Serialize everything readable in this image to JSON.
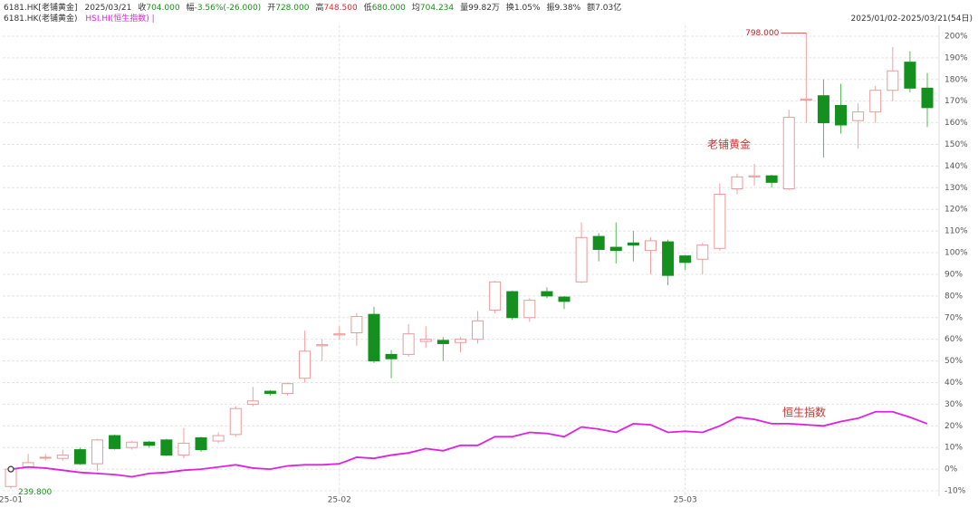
{
  "chart_data": {
    "type": "candlestick",
    "header": [
      {
        "label": "6181.HK[老铺黄金]",
        "value": "2025/03/21",
        "color": "#333333"
      },
      {
        "label": "收",
        "value": "704.000",
        "color": "#1a8f1a"
      },
      {
        "label": "幅",
        "value": "-3.56%(-26.000)",
        "color": "#1a8f1a"
      },
      {
        "label": "开",
        "value": "728.000",
        "color": "#1a8f1a"
      },
      {
        "label": "高",
        "value": "748.500",
        "color": "#d03030"
      },
      {
        "label": "低",
        "value": "680.000",
        "color": "#1a8f1a"
      },
      {
        "label": "均",
        "value": "704.234",
        "color": "#1a8f1a"
      },
      {
        "label": "量",
        "value": "99.82万",
        "color": "#333333"
      },
      {
        "label": "换",
        "value": "1.05%",
        "color": "#333333"
      },
      {
        "label": "振",
        "value": "9.38%",
        "color": "#333333"
      },
      {
        "label": "额",
        "value": "7.03亿",
        "color": "#333333"
      }
    ],
    "date_range": "2025/01/02-2025/03/21(54日)",
    "categories": [
      "25-01",
      null,
      null,
      null,
      null,
      null,
      null,
      null,
      null,
      null,
      null,
      null,
      null,
      null,
      null,
      null,
      null,
      null,
      null,
      "25-02",
      null,
      null,
      null,
      null,
      null,
      null,
      null,
      null,
      null,
      null,
      null,
      null,
      null,
      null,
      null,
      null,
      null,
      null,
      null,
      "25-03",
      null,
      null,
      null,
      null,
      null,
      null,
      null,
      null,
      null,
      null,
      null,
      null,
      null,
      null
    ],
    "ylim": [
      -12.5,
      205
    ],
    "yticks": [
      {
        "value": -10,
        "label": "-10%"
      },
      {
        "value": 0,
        "label": "0%"
      },
      {
        "value": 10,
        "label": "10%"
      },
      {
        "value": 20,
        "label": "20%"
      },
      {
        "value": 30,
        "label": "30%"
      },
      {
        "value": 40,
        "label": "40%"
      },
      {
        "value": 50,
        "label": "50%"
      },
      {
        "value": 60,
        "label": "60%"
      },
      {
        "value": 70,
        "label": "70%"
      },
      {
        "value": 80,
        "label": "80%"
      },
      {
        "value": 90,
        "label": "90%"
      },
      {
        "value": 100,
        "label": "100%"
      },
      {
        "value": 110,
        "label": "110%"
      },
      {
        "value": 120,
        "label": "120%"
      },
      {
        "value": 130,
        "label": "130%"
      },
      {
        "value": 140,
        "label": "140%"
      },
      {
        "value": 150,
        "label": "150%"
      },
      {
        "value": 160,
        "label": "160%"
      },
      {
        "value": 170,
        "label": "170%"
      },
      {
        "value": 180,
        "label": "180%"
      },
      {
        "value": 190,
        "label": "190%"
      },
      {
        "value": 200,
        "label": "200%"
      }
    ],
    "grid": true,
    "candles": {
      "name": "6181.HK(老铺黄金)",
      "annotation": "老铺黄金",
      "up_color": "#e05050",
      "down_color": "#14901e",
      "high_label": "798.000",
      "low_label": "239.800",
      "open": [
        -8,
        1,
        5.5,
        5,
        9,
        2.5,
        15.5,
        10,
        12.5,
        13.5,
        6.5,
        14.5,
        13,
        16,
        30,
        36,
        35,
        42,
        57,
        62,
        63,
        71.5,
        53,
        53,
        59,
        59.5,
        58.5,
        60,
        73.5,
        82,
        70,
        82,
        79.5,
        86.5,
        107.5,
        102.5,
        104.5,
        101,
        105,
        98.5,
        97,
        102,
        129.5,
        135,
        135.5,
        129.5,
        170.5,
        172.5,
        168,
        161,
        165,
        175,
        188,
        176
      ],
      "high": [
        1,
        7,
        7,
        9,
        10,
        14,
        16,
        13,
        13,
        14,
        19,
        15,
        17,
        29,
        38,
        36.5,
        40,
        64,
        60,
        66,
        72,
        75,
        55,
        67,
        66,
        61,
        61,
        73,
        87,
        82.5,
        79,
        84,
        80,
        114,
        109,
        114,
        110,
        107,
        106,
        99,
        104.5,
        132,
        136.5,
        141,
        136,
        166,
        201.5,
        180,
        178,
        169,
        177,
        195,
        193,
        183
      ],
      "low": [
        -9,
        0,
        4,
        4,
        2,
        -1,
        9,
        9,
        10,
        6,
        5,
        8,
        12,
        15,
        29,
        34,
        34,
        40,
        50,
        60,
        57,
        49,
        42,
        52,
        56,
        50,
        54,
        58,
        72,
        69,
        68,
        79,
        74,
        86,
        96,
        95,
        96,
        90,
        85,
        92,
        90,
        101,
        127,
        131,
        130,
        129,
        160,
        144,
        155,
        148,
        160,
        170,
        174,
        158
      ],
      "close": [
        0,
        3,
        5.5,
        6.5,
        2.5,
        13.5,
        9.5,
        12.5,
        11,
        6.5,
        12,
        9,
        15.5,
        28,
        31.5,
        35,
        39.5,
        54.5,
        57.5,
        62.5,
        70.5,
        50,
        51,
        62.5,
        60,
        58,
        60,
        68.5,
        86.5,
        70,
        78,
        80,
        77.5,
        107,
        101.5,
        101,
        103.5,
        105.5,
        89.5,
        95.5,
        103.5,
        127,
        135,
        135.5,
        132.5,
        162.5,
        171,
        160,
        159,
        165,
        175,
        184,
        176,
        167
      ]
    },
    "series": [
      {
        "name": "HSI.HI(恒生指数) |",
        "annotation": "恒生指数",
        "color": "#e020e0",
        "values": [
          0,
          1,
          0.5,
          -0.5,
          -1.5,
          -2,
          -2.5,
          -3.5,
          -2,
          -1.5,
          -0.5,
          0,
          1,
          2,
          0.5,
          0,
          1.5,
          2,
          2,
          2.5,
          5.5,
          5,
          6.5,
          7.5,
          9.5,
          8.5,
          11,
          11,
          15,
          15,
          17,
          16.5,
          15,
          19.5,
          18.5,
          17,
          21,
          20.5,
          17,
          17.5,
          17,
          20,
          24,
          23,
          21,
          21,
          20.5,
          20,
          22,
          23.5,
          26.5,
          26.5,
          24,
          21
        ]
      }
    ]
  }
}
